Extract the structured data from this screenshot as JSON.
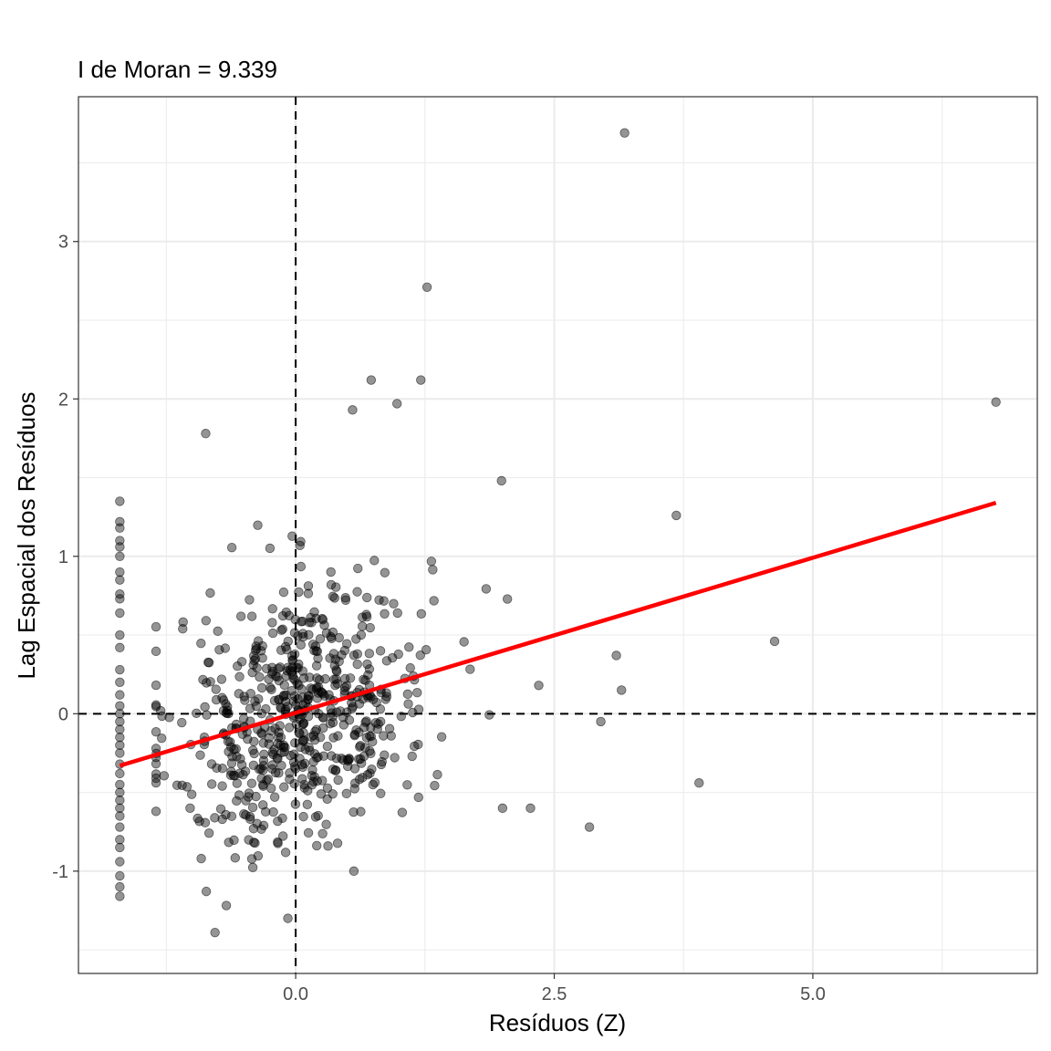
{
  "chart_data": {
    "type": "scatter",
    "title": "I de Moran = 9.339",
    "xlabel": "Resíduos (Z)",
    "ylabel": "Lag Espacial dos Resíduos",
    "xlim": [
      -2.1,
      7.17
    ],
    "ylim": [
      -1.65,
      3.92
    ],
    "x_ticks": [
      0.0,
      2.5,
      5.0
    ],
    "x_tick_labels": [
      "0.0",
      "2.5",
      "5.0"
    ],
    "y_ticks": [
      -1,
      0,
      1,
      2,
      3
    ],
    "y_tick_labels": [
      "-1",
      "0",
      "1",
      "2",
      "3"
    ],
    "x_minor_ticks": [
      -1.25,
      1.25,
      3.75,
      6.25
    ],
    "y_minor_ticks": [
      -1.5,
      -0.5,
      0.5,
      1.5,
      2.5,
      3.5
    ],
    "grid": true,
    "reference_lines": {
      "vertical_x": 0,
      "horizontal_y": 0,
      "style": "dashed"
    },
    "regression_line": {
      "x": [
        -1.7,
        6.77
      ],
      "y": [
        -0.33,
        1.34
      ]
    },
    "colors": {
      "points": "#000000",
      "regression": "#ff0000",
      "grid": "#ebebeb",
      "panel_border": "#333333"
    },
    "highlighted_points": [
      [
        3.18,
        3.69
      ],
      [
        1.27,
        2.71
      ],
      [
        0.73,
        2.12
      ],
      [
        1.21,
        2.12
      ],
      [
        0.55,
        1.93
      ],
      [
        0.98,
        1.97
      ],
      [
        6.77,
        1.98
      ],
      [
        -0.87,
        1.78
      ],
      [
        1.99,
        1.48
      ],
      [
        3.68,
        1.26
      ],
      [
        4.63,
        0.46
      ],
      [
        3.9,
        -0.44
      ],
      [
        2.84,
        -0.72
      ],
      [
        3.1,
        0.37
      ],
      [
        3.15,
        0.15
      ],
      [
        2.35,
        0.18
      ],
      [
        2.95,
        -0.05
      ],
      [
        2.27,
        -0.6
      ],
      [
        2.0,
        -0.6
      ],
      [
        -0.78,
        -1.39
      ]
    ],
    "column_points": {
      "x": -1.7,
      "y": [
        1.35,
        1.22,
        1.18,
        1.1,
        1.06,
        1.0,
        0.9,
        0.85,
        0.76,
        0.73,
        0.64,
        0.5,
        0.42,
        0.28,
        0.2,
        0.12,
        0.05,
        0.0,
        -0.05,
        -0.1,
        -0.15,
        -0.2,
        -0.25,
        -0.32,
        -0.38,
        -0.45,
        -0.5,
        -0.55,
        -0.6,
        -0.65,
        -0.72,
        -0.8,
        -0.85,
        -0.94,
        -1.03,
        -1.1,
        -1.16
      ]
    },
    "cloud": {
      "point_count": 620,
      "x_mean": 0.05,
      "x_sd": 0.62,
      "y_slope": 0.197,
      "y_noise_sd": 0.42,
      "x_range": [
        -1.35,
        2.55
      ],
      "y_range": [
        -1.3,
        1.35
      ]
    }
  }
}
